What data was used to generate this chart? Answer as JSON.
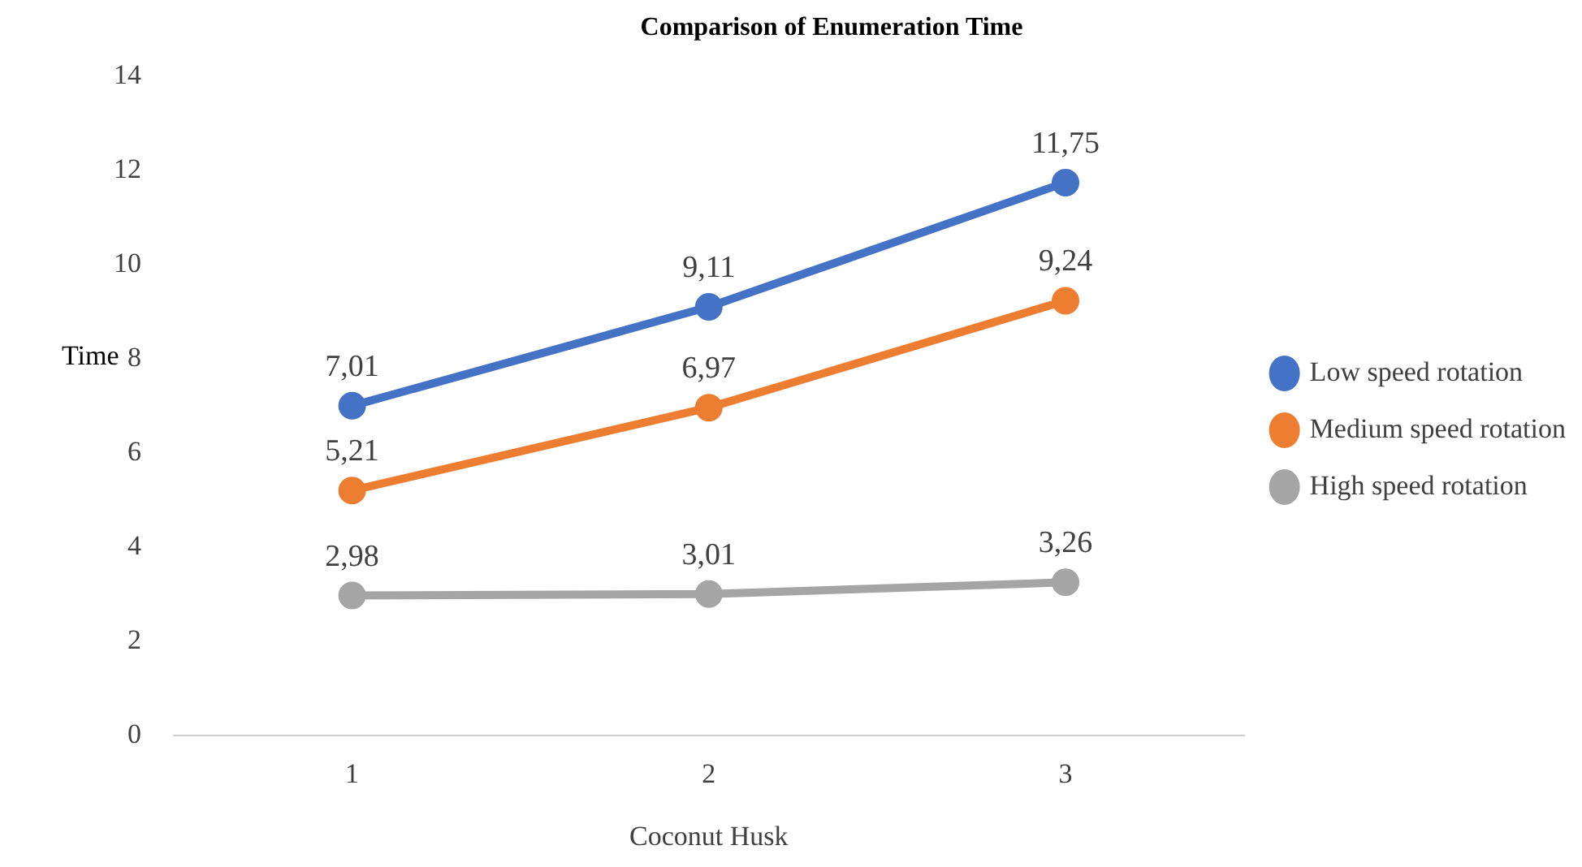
{
  "chart_data": {
    "type": "line",
    "title": "Comparison of Enumeration Time",
    "xlabel": "Coconut Husk",
    "ylabel": "Time",
    "categories": [
      "1",
      "2",
      "3"
    ],
    "series": [
      {
        "name": "Low speed rotation",
        "color": "#4472c4",
        "values": [
          7.01,
          9.11,
          11.75
        ],
        "value_labels": [
          "7,01",
          "9,11",
          "11,75"
        ]
      },
      {
        "name": "Medium speed rotation",
        "color": "#ed7d31",
        "values": [
          5.21,
          6.97,
          9.24
        ],
        "value_labels": [
          "5,21",
          "6,97",
          "9,24"
        ]
      },
      {
        "name": "High speed rotation",
        "color": "#a5a5a5",
        "values": [
          2.98,
          3.01,
          3.26
        ],
        "value_labels": [
          "2,98",
          "3,01",
          "3,26"
        ]
      }
    ],
    "ylim": [
      0,
      14
    ],
    "yticks": [
      0,
      2,
      4,
      6,
      8,
      10,
      12,
      14
    ],
    "grid": false,
    "legend": "right",
    "marker": "circle",
    "line_style": "solid"
  }
}
